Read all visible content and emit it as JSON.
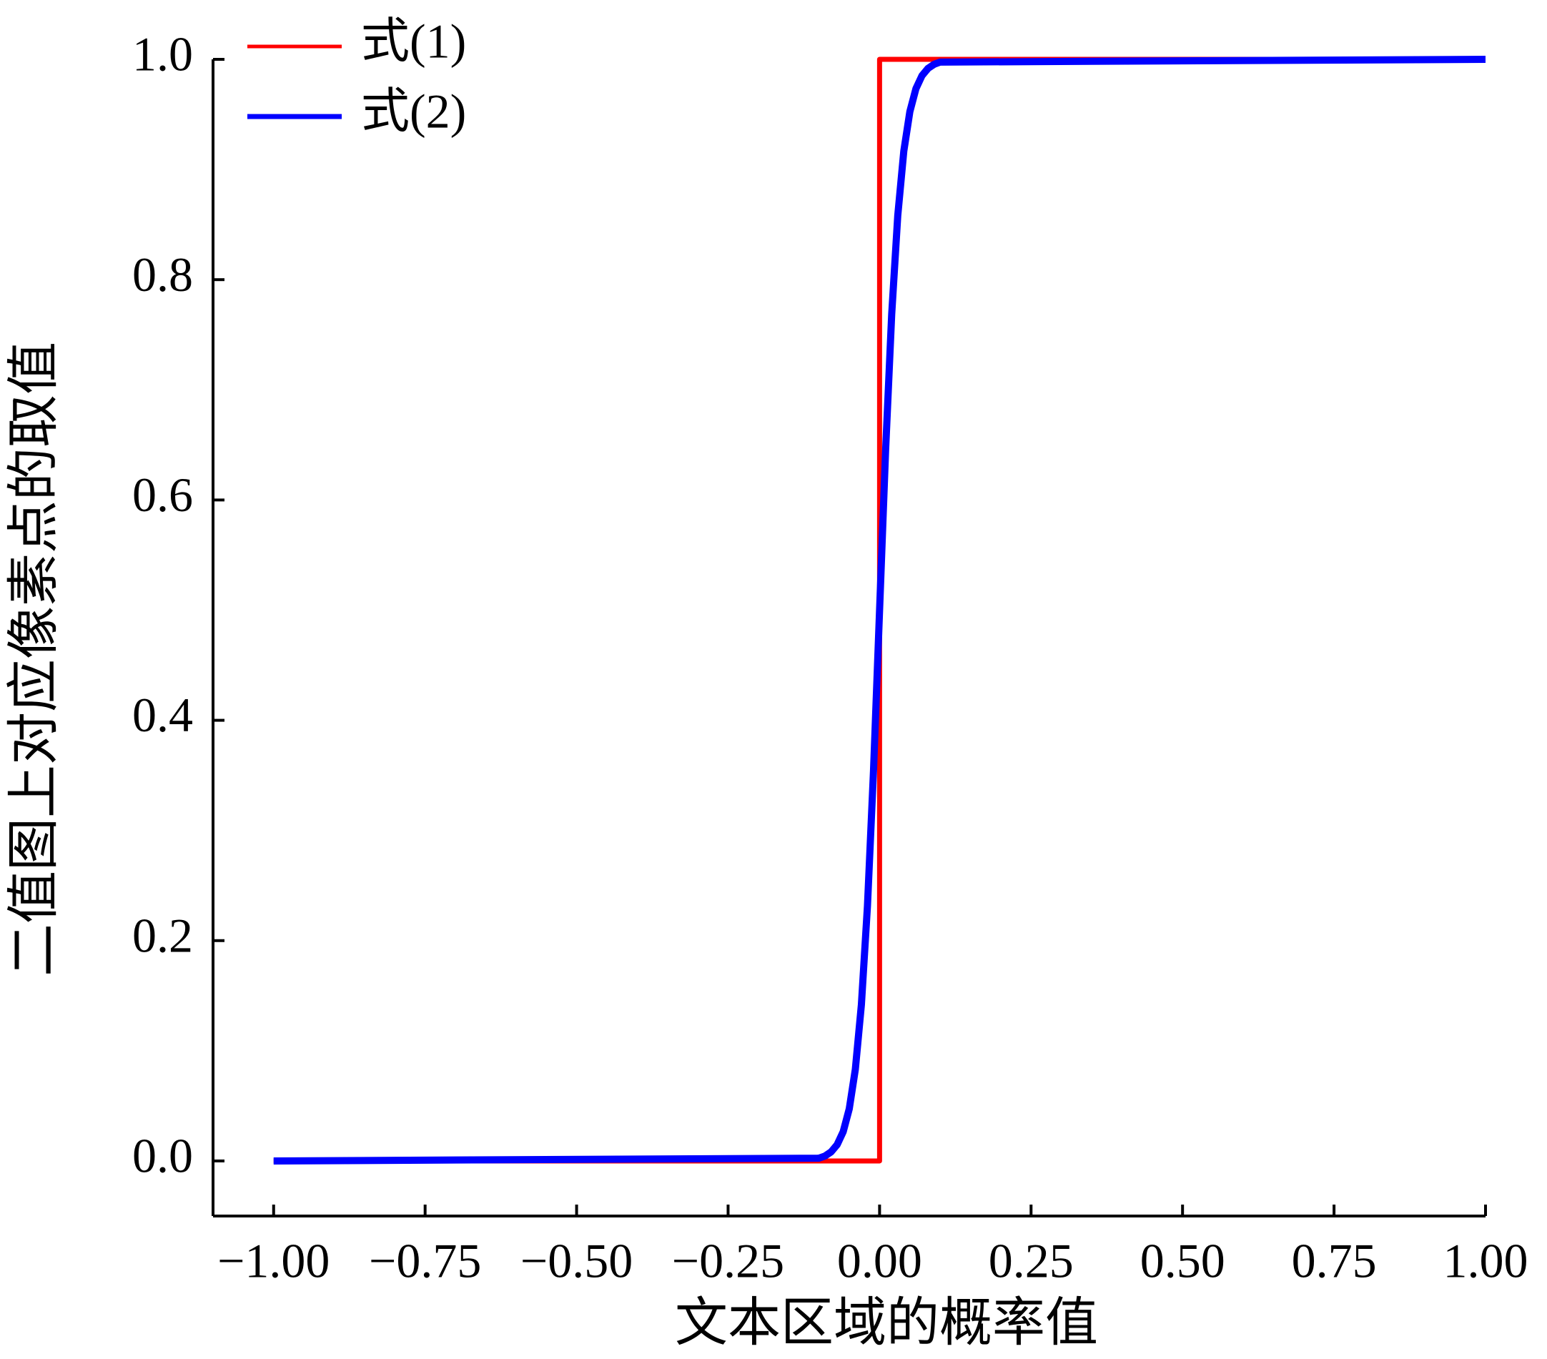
{
  "chart_data": {
    "type": "line",
    "xlabel": "文本区域的概率值",
    "ylabel": "二值图上对应像素点的取值",
    "xlim": [
      -1.1,
      1.0
    ],
    "ylim": [
      -0.05,
      1.0
    ],
    "xticks": [
      {
        "value": -1,
        "label": "−1.00"
      },
      {
        "value": -0.75,
        "label": "−0.75"
      },
      {
        "value": -0.5,
        "label": "−0.50"
      },
      {
        "value": -0.25,
        "label": "−0.25"
      },
      {
        "value": 0,
        "label": "0.00"
      },
      {
        "value": 0.25,
        "label": "0.25"
      },
      {
        "value": 0.5,
        "label": "0.50"
      },
      {
        "value": 0.75,
        "label": "0.75"
      },
      {
        "value": 1,
        "label": "1.00"
      }
    ],
    "yticks": [
      {
        "value": 0,
        "label": "0.0"
      },
      {
        "value": 0.2,
        "label": "0.2"
      },
      {
        "value": 0.4,
        "label": "0.4"
      },
      {
        "value": 0.6,
        "label": "0.6"
      },
      {
        "value": 0.8,
        "label": "0.8"
      },
      {
        "value": 1,
        "label": "1.0"
      }
    ],
    "legend": "upper left",
    "series": [
      {
        "name": "式(1)",
        "color": "#ff0000",
        "x": [
          -1,
          0,
          0,
          1
        ],
        "values": [
          0,
          0,
          1,
          1
        ]
      },
      {
        "name": "式(2)",
        "color": "#0000ff",
        "x": [
          -1,
          -0.1,
          -0.09,
          -0.08,
          -0.07,
          -0.06,
          -0.05,
          -0.04,
          -0.03,
          -0.02,
          -0.01,
          0,
          0.01,
          0.02,
          0.03,
          0.04,
          0.05,
          0.06,
          0.07,
          0.08,
          0.09,
          0.1,
          1
        ],
        "values": [
          0,
          0.0025,
          0.0045,
          0.0082,
          0.0148,
          0.0266,
          0.0474,
          0.0832,
          0.1419,
          0.2315,
          0.3543,
          0.5,
          0.6457,
          0.7685,
          0.8581,
          0.9168,
          0.9526,
          0.9734,
          0.9852,
          0.9918,
          0.9955,
          0.9975,
          1
        ]
      }
    ]
  }
}
